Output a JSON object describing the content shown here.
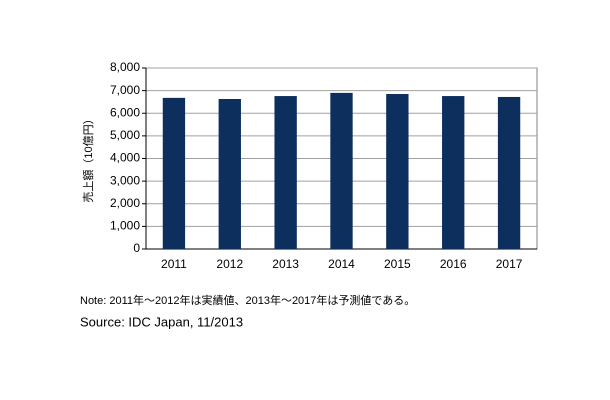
{
  "chart_data": {
    "type": "bar",
    "y_label": "売上額（10億円）",
    "categories": [
      "2011",
      "2012",
      "2013",
      "2014",
      "2015",
      "2016",
      "2017"
    ],
    "values": [
      6680,
      6630,
      6760,
      6900,
      6850,
      6760,
      6720
    ],
    "color": "#0d2f5e",
    "ylim": [
      0,
      8000
    ],
    "yticks": [
      0,
      {
        "value": 1000,
        "label": "1,000"
      },
      {
        "value": 2000,
        "label": "2,000"
      },
      {
        "value": 3000,
        "label": "3,000"
      },
      {
        "value": 4000,
        "label": "4,000"
      },
      {
        "value": 5000,
        "label": "5,000"
      },
      {
        "value": 6000,
        "label": "6,000"
      },
      {
        "value": 7000,
        "label": "7,000"
      },
      {
        "value": 8000,
        "label": "8,000"
      }
    ],
    "grid": true,
    "note": "Note: 2011年～2012年は実績値、2013年～2017年は予測値である。",
    "source": "Source: IDC Japan, 11/2013"
  }
}
